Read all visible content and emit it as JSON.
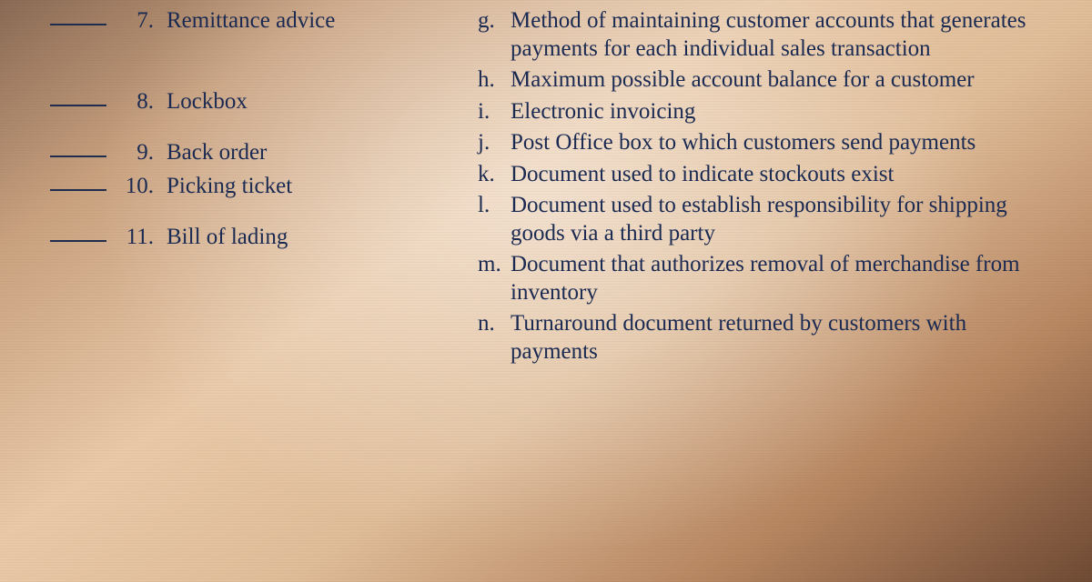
{
  "style": {
    "text_color": "#1a2a52",
    "underline_color": "#1f2d4e",
    "font_family": "Times New Roman",
    "font_size_pt": 19,
    "background_gradient": [
      "#8a6a55",
      "#c9a17f",
      "#e9c9a8",
      "#e0bd99",
      "#b68560",
      "#6f4a34"
    ]
  },
  "left": [
    {
      "n": "7.",
      "term": "Remittance advice"
    },
    {
      "n": "8.",
      "term": "Lockbox"
    },
    {
      "n": "9.",
      "term": "Back order"
    },
    {
      "n": "10.",
      "term": "Picking ticket"
    },
    {
      "n": "11.",
      "term": "Bill of lading"
    }
  ],
  "right": [
    {
      "l": "g.",
      "def": "Method of maintaining customer accounts that generates payments for each individual sales transaction"
    },
    {
      "l": "h.",
      "def": "Maximum possible account balance for a customer"
    },
    {
      "l": "i.",
      "def": "Electronic invoicing"
    },
    {
      "l": "j.",
      "def": "Post Office box to which customers send payments"
    },
    {
      "l": "k.",
      "def": "Document used to indicate stockouts exist"
    },
    {
      "l": "l.",
      "def": "Document used to establish responsibility for shipping goods via a third party"
    },
    {
      "l": "m.",
      "def": "Document that authorizes removal of merchan­dise from inventory"
    },
    {
      "l": "n.",
      "def": "Turnaround document returned by customers with payments"
    }
  ]
}
